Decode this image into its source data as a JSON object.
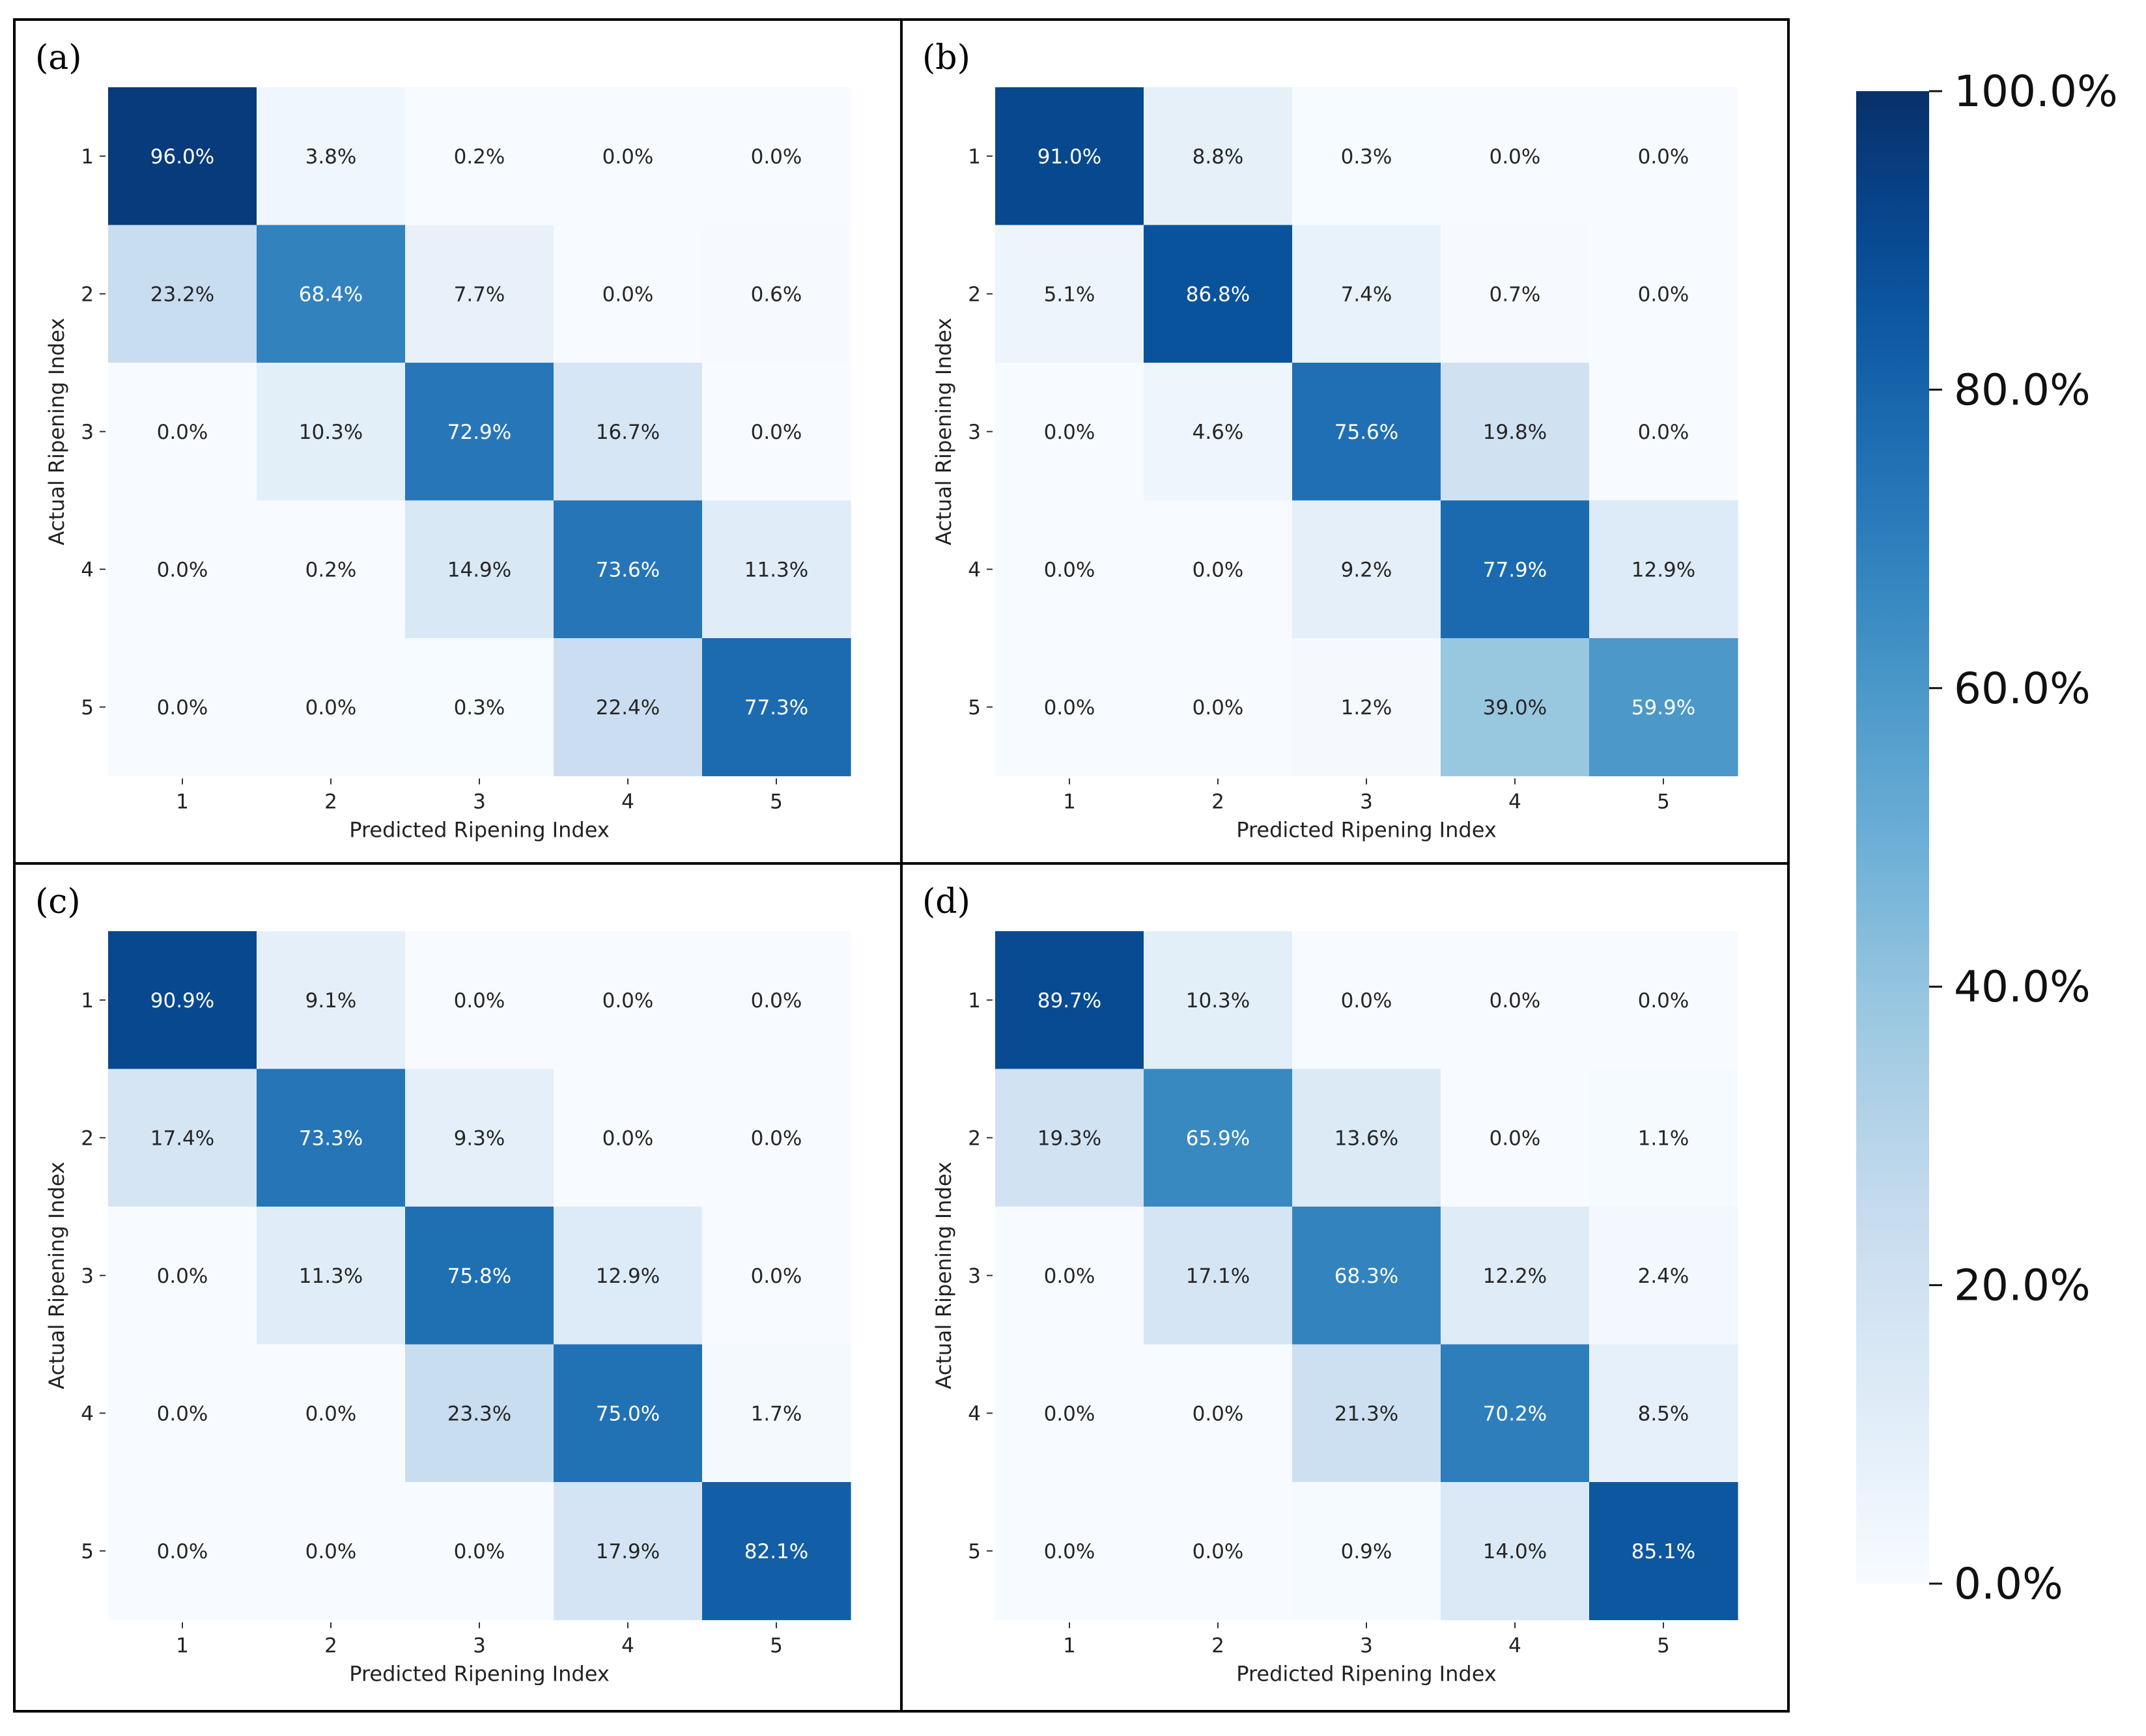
{
  "chart_data": {
    "type": "heatmap",
    "colorbar": {
      "min": 0,
      "max": 100,
      "ticks": [
        "0.0%",
        "20.0%",
        "40.0%",
        "60.0%",
        "80.0%",
        "100.0%"
      ],
      "colormap": "Blues"
    },
    "panels": [
      {
        "label": "(a)",
        "xlabel": "Predicted Ripening Index",
        "ylabel": "Actual Ripening Index",
        "x_categories": [
          "1",
          "2",
          "3",
          "4",
          "5"
        ],
        "y_categories": [
          "1",
          "2",
          "3",
          "4",
          "5"
        ],
        "values": [
          [
            96.0,
            3.8,
            0.2,
            0.0,
            0.0
          ],
          [
            23.2,
            68.4,
            7.7,
            0.0,
            0.6
          ],
          [
            0.0,
            10.3,
            72.9,
            16.7,
            0.0
          ],
          [
            0.0,
            0.2,
            14.9,
            73.6,
            11.3
          ],
          [
            0.0,
            0.0,
            0.3,
            22.4,
            77.3
          ]
        ],
        "cell_labels": [
          [
            "96.0%",
            "3.8%",
            "0.2%",
            "0.0%",
            "0.0%"
          ],
          [
            "23.2%",
            "68.4%",
            "7.7%",
            "0.0%",
            "0.6%"
          ],
          [
            "0.0%",
            "10.3%",
            "72.9%",
            "16.7%",
            "0.0%"
          ],
          [
            "0.0%",
            "0.2%",
            "14.9%",
            "73.6%",
            "11.3%"
          ],
          [
            "0.0%",
            "0.0%",
            "0.3%",
            "22.4%",
            "77.3%"
          ]
        ]
      },
      {
        "label": "(b)",
        "xlabel": "Predicted Ripening Index",
        "ylabel": "Actual Ripening Index",
        "x_categories": [
          "1",
          "2",
          "3",
          "4",
          "5"
        ],
        "y_categories": [
          "1",
          "2",
          "3",
          "4",
          "5"
        ],
        "values": [
          [
            91.0,
            8.8,
            0.3,
            0.0,
            0.0
          ],
          [
            5.1,
            86.8,
            7.4,
            0.7,
            0.0
          ],
          [
            0.0,
            4.6,
            75.6,
            19.8,
            0.0
          ],
          [
            0.0,
            0.0,
            9.2,
            77.9,
            12.9
          ],
          [
            0.0,
            0.0,
            1.2,
            39.0,
            59.9
          ]
        ],
        "cell_labels": [
          [
            "91.0%",
            "8.8%",
            "0.3%",
            "0.0%",
            "0.0%"
          ],
          [
            "5.1%",
            "86.8%",
            "7.4%",
            "0.7%",
            "0.0%"
          ],
          [
            "0.0%",
            "4.6%",
            "75.6%",
            "19.8%",
            "0.0%"
          ],
          [
            "0.0%",
            "0.0%",
            "9.2%",
            "77.9%",
            "12.9%"
          ],
          [
            "0.0%",
            "0.0%",
            "1.2%",
            "39.0%",
            "59.9%"
          ]
        ]
      },
      {
        "label": "(c)",
        "xlabel": "Predicted Ripening Index",
        "ylabel": "Actual Ripening Index",
        "x_categories": [
          "1",
          "2",
          "3",
          "4",
          "5"
        ],
        "y_categories": [
          "1",
          "2",
          "3",
          "4",
          "5"
        ],
        "values": [
          [
            90.9,
            9.1,
            0.0,
            0.0,
            0.0
          ],
          [
            17.4,
            73.3,
            9.3,
            0.0,
            0.0
          ],
          [
            0.0,
            11.3,
            75.8,
            12.9,
            0.0
          ],
          [
            0.0,
            0.0,
            23.3,
            75.0,
            1.7
          ],
          [
            0.0,
            0.0,
            0.0,
            17.9,
            82.1
          ]
        ],
        "cell_labels": [
          [
            "90.9%",
            "9.1%",
            "0.0%",
            "0.0%",
            "0.0%"
          ],
          [
            "17.4%",
            "73.3%",
            "9.3%",
            "0.0%",
            "0.0%"
          ],
          [
            "0.0%",
            "11.3%",
            "75.8%",
            "12.9%",
            "0.0%"
          ],
          [
            "0.0%",
            "0.0%",
            "23.3%",
            "75.0%",
            "1.7%"
          ],
          [
            "0.0%",
            "0.0%",
            "0.0%",
            "17.9%",
            "82.1%"
          ]
        ]
      },
      {
        "label": "(d)",
        "xlabel": "Predicted Ripening Index",
        "ylabel": "Actual Ripening Index",
        "x_categories": [
          "1",
          "2",
          "3",
          "4",
          "5"
        ],
        "y_categories": [
          "1",
          "2",
          "3",
          "4",
          "5"
        ],
        "values": [
          [
            89.7,
            10.3,
            0.0,
            0.0,
            0.0
          ],
          [
            19.3,
            65.9,
            13.6,
            0.0,
            1.1
          ],
          [
            0.0,
            17.1,
            68.3,
            12.2,
            2.4
          ],
          [
            0.0,
            0.0,
            21.3,
            70.2,
            8.5
          ],
          [
            0.0,
            0.0,
            0.9,
            14.0,
            85.1
          ]
        ],
        "cell_labels": [
          [
            "89.7%",
            "10.3%",
            "0.0%",
            "0.0%",
            "0.0%"
          ],
          [
            "19.3%",
            "65.9%",
            "13.6%",
            "0.0%",
            "1.1%"
          ],
          [
            "0.0%",
            "17.1%",
            "68.3%",
            "12.2%",
            "2.4%"
          ],
          [
            "0.0%",
            "0.0%",
            "21.3%",
            "70.2%",
            "8.5%"
          ],
          [
            "0.0%",
            "0.0%",
            "0.9%",
            "14.0%",
            "85.1%"
          ]
        ]
      }
    ]
  }
}
